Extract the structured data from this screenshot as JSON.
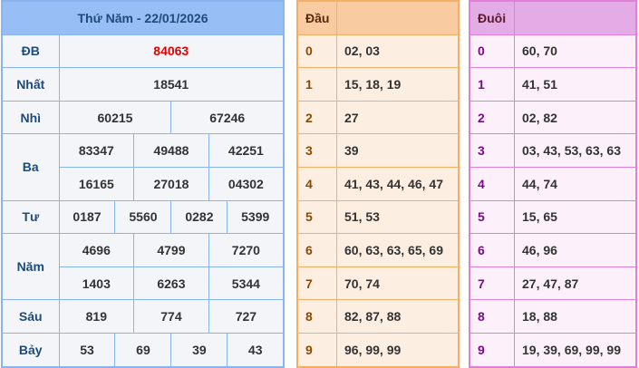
{
  "results": {
    "title": "Thứ Năm - 22/01/2026",
    "prizes": [
      {
        "label": "ĐB",
        "rows": [
          [
            "84063"
          ]
        ]
      },
      {
        "label": "Nhất",
        "rows": [
          [
            "18541"
          ]
        ]
      },
      {
        "label": "Nhì",
        "rows": [
          [
            "60215",
            "67246"
          ]
        ]
      },
      {
        "label": "Ba",
        "rows": [
          [
            "83347",
            "49488",
            "42251"
          ],
          [
            "16165",
            "27018",
            "04302"
          ]
        ]
      },
      {
        "label": "Tư",
        "rows": [
          [
            "0187",
            "5560",
            "0282",
            "5399"
          ]
        ]
      },
      {
        "label": "Năm",
        "rows": [
          [
            "4696",
            "4799",
            "7270"
          ],
          [
            "1403",
            "6263",
            "5344"
          ]
        ]
      },
      {
        "label": "Sáu",
        "rows": [
          [
            "819",
            "774",
            "727"
          ]
        ]
      },
      {
        "label": "Bảy",
        "rows": [
          [
            "53",
            "69",
            "39",
            "43"
          ]
        ]
      }
    ]
  },
  "dau": {
    "title": "Đầu",
    "rows": [
      [
        "0",
        "02, 03"
      ],
      [
        "1",
        "15, 18, 19"
      ],
      [
        "2",
        "27"
      ],
      [
        "3",
        "39"
      ],
      [
        "4",
        "41, 43, 44, 46, 47"
      ],
      [
        "5",
        "51, 53"
      ],
      [
        "6",
        "60, 63, 63, 65, 69"
      ],
      [
        "7",
        "70, 74"
      ],
      [
        "8",
        "82, 87, 88"
      ],
      [
        "9",
        "96, 99, 99"
      ]
    ]
  },
  "duoi": {
    "title": "Đuôi",
    "rows": [
      [
        "0",
        "60, 70"
      ],
      [
        "1",
        "41, 51"
      ],
      [
        "2",
        "02, 82"
      ],
      [
        "3",
        "03, 43, 53, 63, 63"
      ],
      [
        "4",
        "44, 74"
      ],
      [
        "5",
        "15, 65"
      ],
      [
        "6",
        "46, 96"
      ],
      [
        "7",
        "27, 47, 87"
      ],
      [
        "8",
        "18, 88"
      ],
      [
        "9",
        "19, 39, 69, 99, 99"
      ]
    ]
  }
}
